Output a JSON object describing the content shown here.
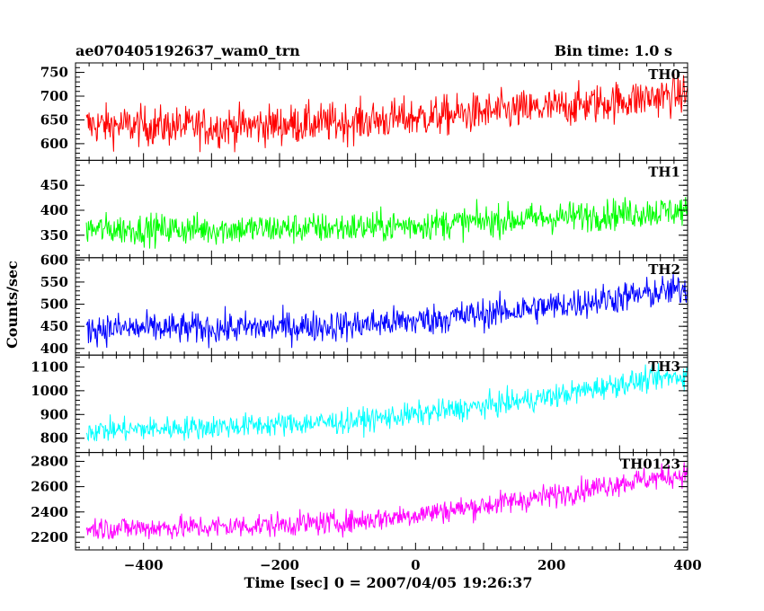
{
  "header": {
    "title": "ae070405192637_wam0_trn",
    "bin_time": "Bin time: 1.0 s"
  },
  "chart_data": {
    "type": "line",
    "title": "ae070405192637_wam0_trn",
    "xlabel": "Time [sec] 0 = 2007/04/05 19:26:37",
    "ylabel": "Counts/sec",
    "xlim": [
      -500,
      400
    ],
    "x_ticks": [
      -400,
      -200,
      0,
      200,
      400
    ],
    "grid": false,
    "panels": [
      {
        "name": "TH0",
        "color": "#ff0000",
        "ylim": [
          565,
          770
        ],
        "y_ticks": [
          600,
          650,
          700,
          750
        ],
        "trend": {
          "x": [
            -500,
            -300,
            -100,
            0,
            100,
            200,
            300,
            400
          ],
          "y": [
            640,
            635,
            645,
            655,
            665,
            675,
            690,
            705
          ]
        },
        "noise_amp": 38
      },
      {
        "name": "TH1",
        "color": "#00ff00",
        "ylim": [
          305,
          500
        ],
        "y_ticks": [
          350,
          400,
          450
        ],
        "trend": {
          "x": [
            -500,
            -300,
            -100,
            0,
            100,
            200,
            300,
            400
          ],
          "y": [
            362,
            362,
            365,
            370,
            378,
            385,
            393,
            400
          ]
        },
        "noise_amp": 28
      },
      {
        "name": "TH2",
        "color": "#0000ff",
        "ylim": [
          385,
          605
        ],
        "y_ticks": [
          400,
          450,
          500,
          550,
          600
        ],
        "trend": {
          "x": [
            -500,
            -300,
            -100,
            0,
            100,
            200,
            300,
            400
          ],
          "y": [
            445,
            445,
            452,
            462,
            478,
            495,
            515,
            535
          ]
        },
        "noise_amp": 32
      },
      {
        "name": "TH3",
        "color": "#00ffff",
        "ylim": [
          740,
          1150
        ],
        "y_ticks": [
          800,
          900,
          1000,
          1100
        ],
        "trend": {
          "x": [
            -500,
            -300,
            -100,
            0,
            100,
            200,
            300,
            400
          ],
          "y": [
            830,
            848,
            870,
            900,
            935,
            975,
            1030,
            1065
          ]
        },
        "noise_amp": 45
      },
      {
        "name": "TH0123",
        "color": "#ff00ff",
        "ylim": [
          2100,
          2870
        ],
        "y_ticks": [
          2200,
          2400,
          2600,
          2800
        ],
        "trend": {
          "x": [
            -500,
            -300,
            -100,
            0,
            100,
            200,
            300,
            400
          ],
          "y": [
            2270,
            2280,
            2320,
            2380,
            2450,
            2530,
            2630,
            2700
          ]
        },
        "noise_amp": 85
      }
    ]
  }
}
